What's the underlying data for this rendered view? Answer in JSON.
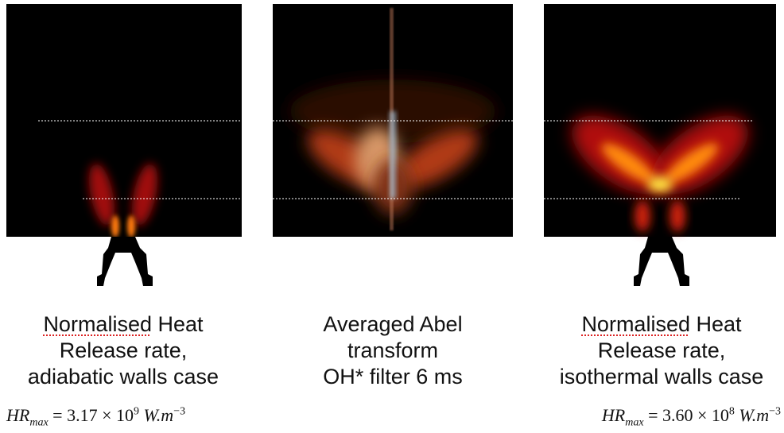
{
  "panels": [
    {
      "caption": {
        "first": "Normalised",
        "rest": "Heat",
        "lines": [
          "Release rate,",
          "adiabatic walls case"
        ]
      },
      "formula": {
        "lhs": "HR",
        "sub": "max",
        "eq": "= 3.17 × 10",
        "exp": "9",
        "unit": "W.m",
        "unit_exp": "−3"
      }
    },
    {
      "caption": {
        "lines": [
          "Averaged Abel",
          "transform",
          "OH* filter 6 ms"
        ]
      }
    },
    {
      "caption": {
        "first": "Normalised",
        "rest": "Heat",
        "lines": [
          "Release rate,",
          "isothermal walls case"
        ]
      },
      "formula": {
        "lhs": "HR",
        "sub": "max",
        "eq": "= 3.60 × 10",
        "exp": "8",
        "unit": "W.m",
        "unit_exp": "−3"
      }
    }
  ]
}
